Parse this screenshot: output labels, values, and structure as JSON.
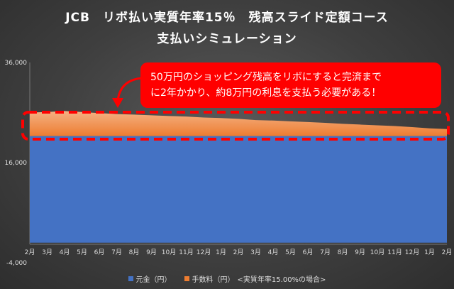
{
  "chart_data": {
    "type": "area",
    "title": "JCB　リボ払い実質年率15％　残高スライド定額コース",
    "subtitle": "支払いシミュレーション",
    "categories": [
      "2月",
      "3月",
      "4月",
      "5月",
      "6月",
      "7月",
      "8月",
      "9月",
      "10月",
      "11月",
      "12月",
      "1月",
      "2月",
      "3月",
      "4月",
      "5月",
      "6月",
      "7月",
      "8月",
      "9月",
      "10月",
      "11月",
      "12月",
      "1月",
      "2月"
    ],
    "yticks": [
      "36,000",
      "16,000",
      "-4,000"
    ],
    "ylim": [
      -4000,
      36000
    ],
    "grid": false,
    "legend_position": "bottom",
    "series": [
      {
        "name": "元金（円）",
        "color": "#4472c4",
        "values": [
          21300,
          21300,
          21300,
          21300,
          21300,
          21300,
          21300,
          21300,
          21300,
          21300,
          21300,
          21300,
          21300,
          21300,
          21300,
          21300,
          21300,
          21300,
          21300,
          21300,
          21300,
          21300,
          21300,
          21300,
          21300
        ]
      },
      {
        "name": "手数料（円）",
        "color": "#ed7d31",
        "values": [
          4700,
          4800,
          5000,
          4800,
          4600,
          4400,
          4300,
          4150,
          4000,
          3900,
          3700,
          3600,
          3450,
          3200,
          3100,
          2950,
          2800,
          2650,
          2450,
          2300,
          2150,
          2000,
          1800,
          1550,
          1400
        ]
      }
    ],
    "legend_note": "<実質年率15.00%の場合>",
    "annotation": {
      "line1": "50万円のショッピング残高をリボにすると完済まで",
      "line2": "に2年かかり、約8万円の利息を支払う必要がある！"
    },
    "highlight_color": "#ff0000"
  }
}
